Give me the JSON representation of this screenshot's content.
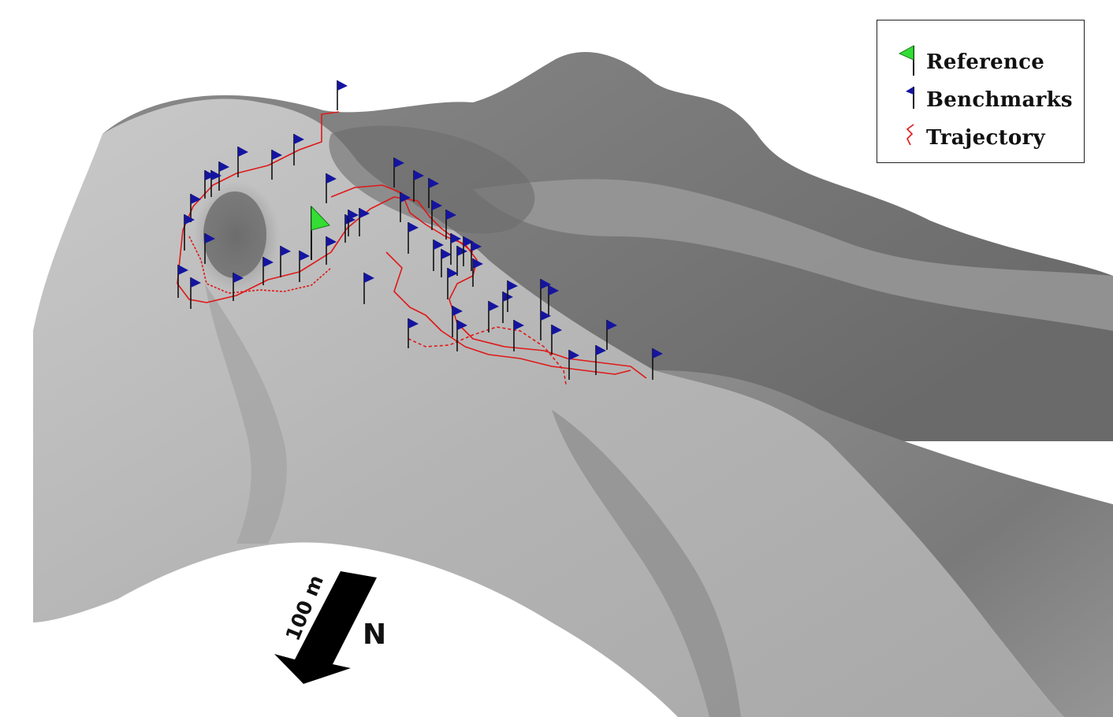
{
  "legend": {
    "items": [
      {
        "label": "Reference",
        "symbol": "reference-flag-icon",
        "color": "#33dd33"
      },
      {
        "label": "Benchmarks",
        "symbol": "benchmark-flag-icon",
        "color": "#1414a0"
      },
      {
        "label": "Trajectory",
        "symbol": "trajectory-line-icon",
        "color": "#e01818"
      }
    ]
  },
  "scale_bar": {
    "label": "100 m"
  },
  "north_arrow": {
    "label": "N"
  },
  "colors": {
    "terrain_light": "#d2d2d2",
    "terrain_dark": "#6e6e6e",
    "benchmark": "#1414a0",
    "reference": "#33dd33",
    "trajectory": "#e01818"
  }
}
